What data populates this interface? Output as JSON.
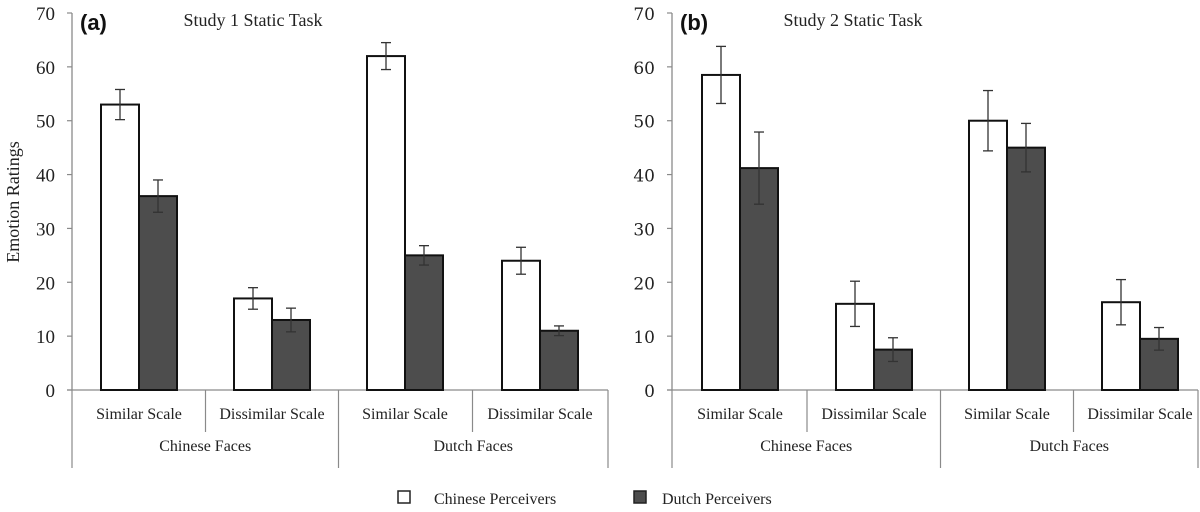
{
  "chart_data": [
    {
      "type": "bar",
      "panel": "(a)",
      "title": "Study 1 Static Task",
      "ylabel": "Emotion Ratings",
      "xlabel": "",
      "ylim": [
        0,
        70
      ],
      "yticks": [
        0,
        10,
        20,
        30,
        40,
        50,
        60,
        70
      ],
      "grid": false,
      "groups": [
        "Chinese Faces",
        "Dutch Faces"
      ],
      "categories": [
        "Similar Scale",
        "Dissimilar Scale",
        "Similar Scale",
        "Dissimilar Scale"
      ],
      "series": [
        {
          "name": "Chinese Perceivers",
          "color": "#ffffff",
          "values": [
            53,
            17,
            62,
            24
          ],
          "error": [
            2.8,
            2.0,
            2.5,
            2.5
          ]
        },
        {
          "name": "Dutch Perceivers",
          "color": "#4d4d4d",
          "values": [
            36,
            13,
            25,
            11
          ],
          "error": [
            3.0,
            2.2,
            1.8,
            0.9
          ]
        }
      ]
    },
    {
      "type": "bar",
      "panel": "(b)",
      "title": "Study 2 Static Task",
      "ylabel": "",
      "xlabel": "",
      "ylim": [
        0,
        70
      ],
      "yticks": [
        0,
        10,
        20,
        30,
        40,
        50,
        60,
        70
      ],
      "grid": false,
      "groups": [
        "Chinese Faces",
        "Dutch Faces"
      ],
      "categories": [
        "Similar Scale",
        "Dissimilar Scale",
        "Similar Scale",
        "Dissimilar Scale"
      ],
      "series": [
        {
          "name": "Chinese Perceivers",
          "color": "#ffffff",
          "values": [
            58.5,
            16,
            50,
            16.3
          ],
          "error": [
            5.3,
            4.2,
            5.6,
            4.2
          ]
        },
        {
          "name": "Dutch Perceivers",
          "color": "#4d4d4d",
          "values": [
            41.2,
            7.5,
            45,
            9.5
          ],
          "error": [
            6.7,
            2.2,
            4.5,
            2.1
          ]
        }
      ]
    }
  ],
  "legend": {
    "placement": "bottom-center",
    "items": [
      {
        "label": "Chinese Perceivers",
        "color": "#ffffff"
      },
      {
        "label": "Dutch Perceivers",
        "color": "#4d4d4d"
      }
    ]
  }
}
